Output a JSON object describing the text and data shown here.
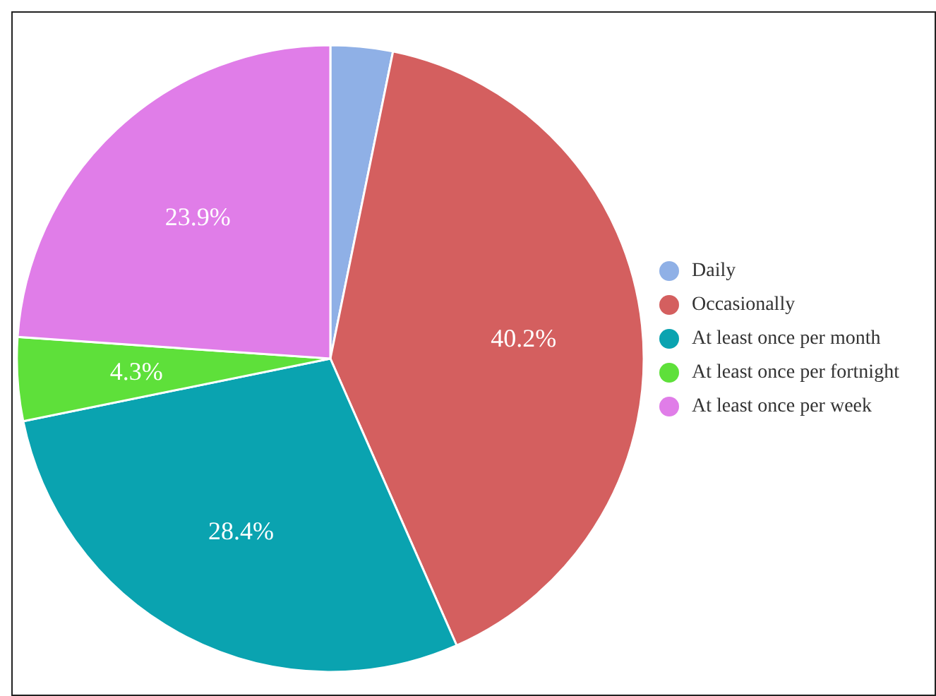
{
  "chart_data": {
    "type": "pie",
    "categories": [
      "Daily",
      "Occasionally",
      "At least once per month",
      "At least once per fortnight",
      "At least once per week"
    ],
    "values": [
      3.2,
      40.2,
      28.4,
      4.3,
      23.9
    ],
    "colors": [
      "#8fb0e6",
      "#d45f5f",
      "#0aa3b0",
      "#5ee03a",
      "#e07de8"
    ],
    "value_labels": [
      null,
      "40.2%",
      "28.4%",
      "4.3%",
      "23.9%"
    ],
    "legend": "right"
  }
}
